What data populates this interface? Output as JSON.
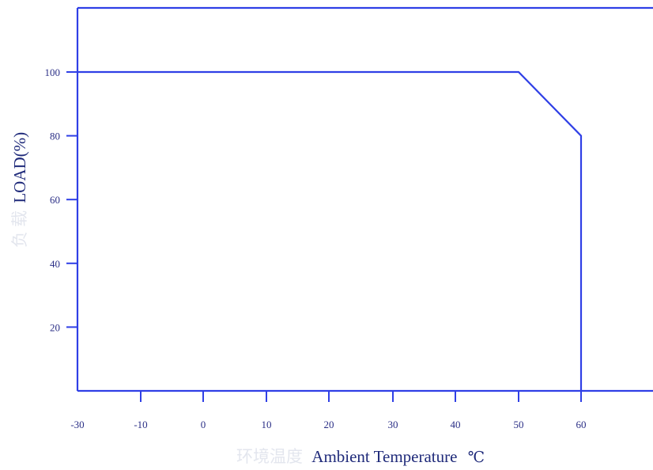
{
  "chart_data": {
    "type": "line",
    "xlabel_cn": "环境温度",
    "xlabel": "Ambient Temperature",
    "xunit": "℃",
    "ylabel_cn": "负 载",
    "ylabel": "LOAD(%)",
    "xlim": [
      -30,
      70
    ],
    "ylim": [
      0,
      120
    ],
    "x_ticks": [
      -30,
      -10,
      0,
      10,
      20,
      30,
      40,
      50,
      60
    ],
    "x_tick_labels": [
      "-30",
      "-10",
      "0",
      "10",
      "20",
      "30",
      "40",
      "50",
      "60"
    ],
    "y_ticks": [
      20,
      40,
      60,
      80,
      100
    ],
    "y_tick_labels": [
      "20",
      "40",
      "60",
      "80",
      "100"
    ],
    "series": [
      {
        "x": [
          -30,
          50,
          60,
          60
        ],
        "y": [
          100,
          100,
          80,
          0
        ]
      }
    ],
    "grid": false,
    "colors": {
      "line": "#2f3fe6",
      "axis": "#2f3fe6",
      "text": "#2b2f86"
    }
  }
}
